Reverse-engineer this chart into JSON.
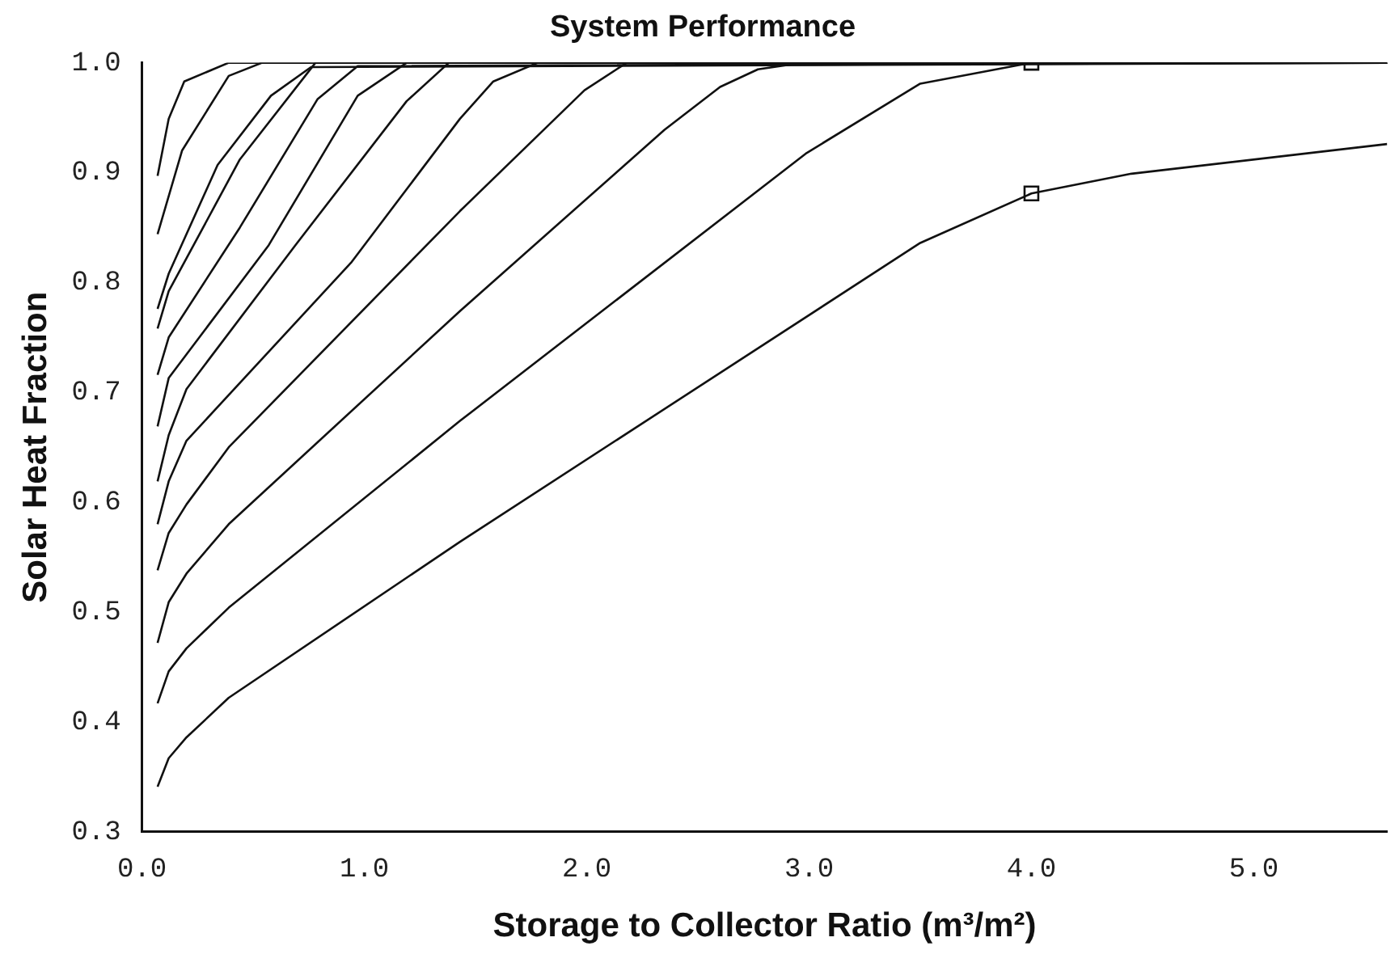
{
  "chart_data": {
    "type": "line",
    "title": "System Performance",
    "xlabel": "Storage to Collector Ratio (m³/m²)",
    "ylabel": "Solar Heat Fraction",
    "xlim": [
      0,
      5.6
    ],
    "ylim": [
      0.3,
      1.0
    ],
    "xticks": [
      {
        "value": 0,
        "label": "0.0"
      },
      {
        "value": 1,
        "label": "1.0"
      },
      {
        "value": 2,
        "label": "2.0"
      },
      {
        "value": 3,
        "label": "3.0"
      },
      {
        "value": 4,
        "label": "4.0"
      },
      {
        "value": 5,
        "label": "5.0"
      }
    ],
    "yticks": [
      {
        "value": 0.3,
        "label": "0.3"
      },
      0.4,
      0.5,
      0.6,
      0.7,
      0.8,
      0.9,
      {
        "value": 1.0,
        "label": "1.0"
      }
    ],
    "grid": false,
    "legend": false,
    "marker": "none",
    "line_style": "solid",
    "series": [
      {
        "color": "#111111",
        "x": [
          0.07,
          0.12,
          0.19,
          0.39,
          5.6
        ],
        "values": [
          0.897,
          0.949,
          0.983,
          1.0,
          1.0
        ]
      },
      {
        "color": "#111111",
        "x": [
          0.07,
          0.18,
          0.39,
          0.54,
          5.6
        ],
        "values": [
          0.844,
          0.92,
          0.988,
          1.0,
          1.0
        ]
      },
      {
        "color": "#111111",
        "x": [
          0.07,
          0.12,
          0.34,
          0.58,
          0.76,
          5.6
        ],
        "values": [
          0.776,
          0.808,
          0.907,
          0.97,
          0.996,
          1.0
        ]
      },
      {
        "color": "#111111",
        "x": [
          0.07,
          0.12,
          0.44,
          0.78,
          5.6
        ],
        "values": [
          0.758,
          0.792,
          0.912,
          1.0,
          1.0
        ]
      },
      {
        "color": "#111111",
        "x": [
          0.07,
          0.12,
          0.44,
          0.79,
          0.97,
          5.6
        ],
        "values": [
          0.716,
          0.75,
          0.85,
          0.967,
          0.997,
          1.0
        ]
      },
      {
        "color": "#111111",
        "x": [
          0.07,
          0.12,
          0.57,
          0.97,
          1.19,
          5.6
        ],
        "values": [
          0.669,
          0.713,
          0.834,
          0.97,
          1.0,
          1.0
        ]
      },
      {
        "color": "#111111",
        "x": [
          0.07,
          0.12,
          0.2,
          0.69,
          1.19,
          1.38,
          5.6
        ],
        "values": [
          0.619,
          0.661,
          0.703,
          0.834,
          0.965,
          1.0,
          1.0
        ]
      },
      {
        "color": "#111111",
        "x": [
          0.07,
          0.12,
          0.2,
          0.94,
          1.43,
          1.58,
          1.78,
          5.6
        ],
        "values": [
          0.58,
          0.619,
          0.656,
          0.818,
          0.949,
          0.983,
          1.0,
          1.0
        ]
      },
      {
        "color": "#111111",
        "x": [
          0.07,
          0.12,
          0.2,
          0.39,
          1.43,
          1.99,
          2.18,
          5.6
        ],
        "values": [
          0.538,
          0.572,
          0.598,
          0.65,
          0.865,
          0.975,
          1.0,
          1.0
        ]
      },
      {
        "color": "#111111",
        "x": [
          0.07,
          0.12,
          0.2,
          0.39,
          1.43,
          2.35,
          2.6,
          2.77,
          2.97,
          5.6
        ],
        "values": [
          0.472,
          0.509,
          0.535,
          0.58,
          0.774,
          0.939,
          0.978,
          0.994,
          1.0,
          1.0
        ]
      },
      {
        "color": "#111111",
        "x": [
          0.07,
          0.12,
          0.2,
          0.39,
          1.43,
          2.99,
          3.5,
          4.0,
          5.6
        ],
        "values": [
          0.417,
          0.446,
          0.467,
          0.504,
          0.674,
          0.918,
          0.981,
          1.0,
          1.0
        ]
      },
      {
        "color": "#111111",
        "x": [
          0.07,
          0.12,
          0.2,
          0.39,
          1.43,
          3.5,
          4.0,
          4.45,
          5.6
        ],
        "values": [
          0.341,
          0.367,
          0.386,
          0.422,
          0.564,
          0.836,
          0.881,
          0.899,
          0.926
        ]
      },
      {
        "type": "scatter",
        "color": "#111111",
        "marker": "square",
        "x": [
          4.0,
          4.0
        ],
        "values": [
          1.0,
          0.881
        ]
      }
    ]
  }
}
